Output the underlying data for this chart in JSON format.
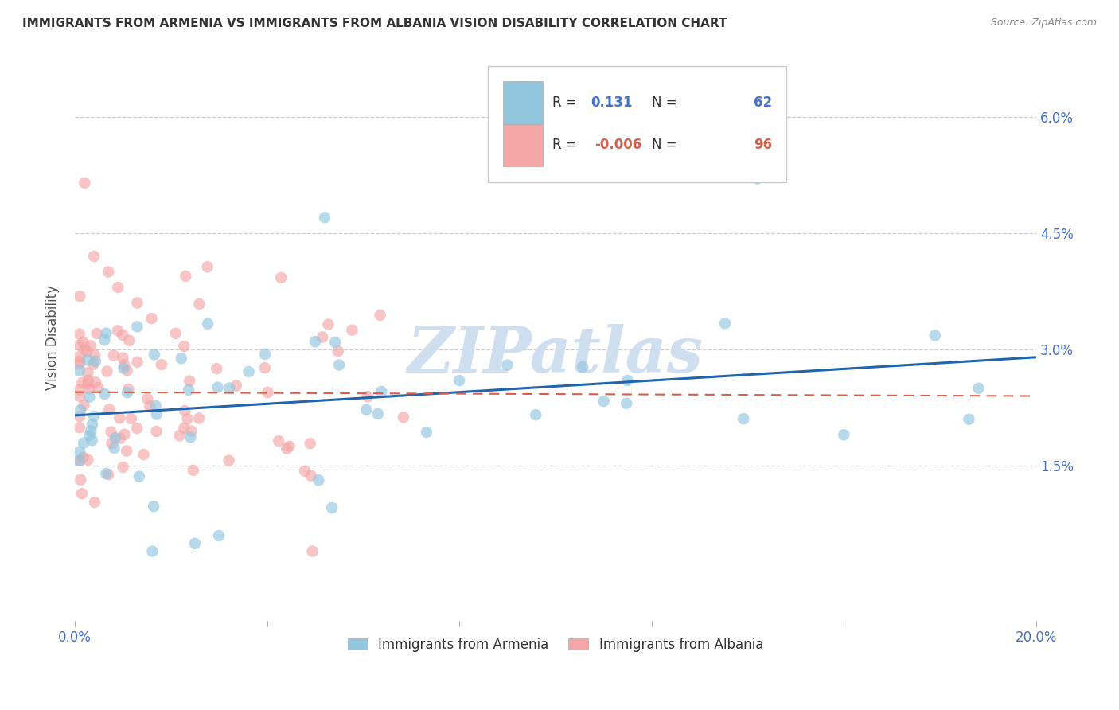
{
  "title": "IMMIGRANTS FROM ARMENIA VS IMMIGRANTS FROM ALBANIA VISION DISABILITY CORRELATION CHART",
  "source": "Source: ZipAtlas.com",
  "ylabel": "Vision Disability",
  "xlim": [
    0.0,
    0.2
  ],
  "ylim": [
    -0.005,
    0.068
  ],
  "yticks": [
    0.015,
    0.03,
    0.045,
    0.06
  ],
  "ytick_labels": [
    "1.5%",
    "3.0%",
    "4.5%",
    "6.0%"
  ],
  "xticks": [
    0.0,
    0.04,
    0.08,
    0.12,
    0.16,
    0.2
  ],
  "xtick_labels": [
    "0.0%",
    "",
    "",
    "",
    "",
    "20.0%"
  ],
  "R_armenia": 0.131,
  "N_armenia": 62,
  "R_albania": -0.006,
  "N_albania": 96,
  "color_armenia": "#92c5de",
  "color_albania": "#f4a6a6",
  "trend_armenia_color": "#2166ac",
  "trend_albania_color": "#d6604d",
  "watermark": "ZIPatlas",
  "watermark_color": "#d0dff0",
  "legend_armenia": "Immigrants from Armenia",
  "legend_albania": "Immigrants from Albania",
  "background_color": "#ffffff",
  "grid_color": "#cccccc",
  "arm_trend_x0": 0.0,
  "arm_trend_y0": 0.0215,
  "arm_trend_x1": 0.2,
  "arm_trend_y1": 0.029,
  "alb_trend_x0": 0.0,
  "alb_trend_y0": 0.0245,
  "alb_trend_x1": 0.2,
  "alb_trend_y1": 0.024
}
